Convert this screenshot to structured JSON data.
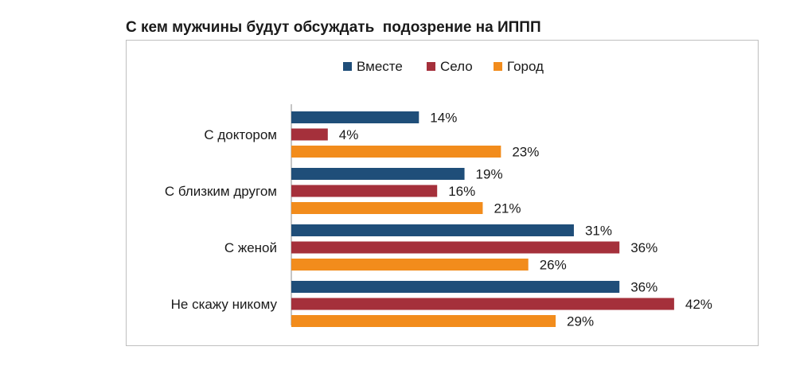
{
  "chart_data": {
    "type": "bar",
    "orientation": "horizontal",
    "title": "С кем мужчины будут обсуждать  подозрение на ИППП",
    "categories": [
      "С доктором",
      "С близким другом",
      "С женой",
      "Не скажу никому"
    ],
    "series": [
      {
        "name": "Вместе",
        "values": [
          14,
          19,
          31,
          36
        ],
        "color": "#1f4e79"
      },
      {
        "name": "Село",
        "values": [
          4,
          16,
          36,
          42
        ],
        "color": "#a5303b"
      },
      {
        "name": "Город",
        "values": [
          23,
          21,
          26,
          29
        ],
        "color": "#f28c1c"
      }
    ],
    "value_suffix": "%",
    "xlim": [
      0,
      45
    ],
    "grid": false,
    "legend_position": "top",
    "show_value_axis": false
  }
}
